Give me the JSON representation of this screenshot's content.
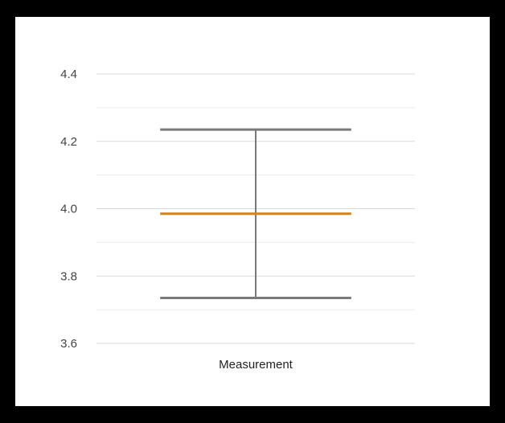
{
  "chart_data": {
    "type": "errorbar",
    "categories": [
      "Measurement"
    ],
    "series": [
      {
        "mean": 3.985,
        "lower": 3.735,
        "upper": 4.235
      }
    ],
    "ylim": [
      3.6,
      4.4
    ],
    "y_ticks": [
      "3.6",
      "3.8",
      "4.0",
      "4.2",
      "4.4"
    ],
    "minor_gridlines": true,
    "grid": true,
    "colors": {
      "mean": "#d4831f",
      "whisker": "#7a7a7a",
      "grid": "#d9d9d9",
      "minor_grid": "#ececec"
    }
  }
}
